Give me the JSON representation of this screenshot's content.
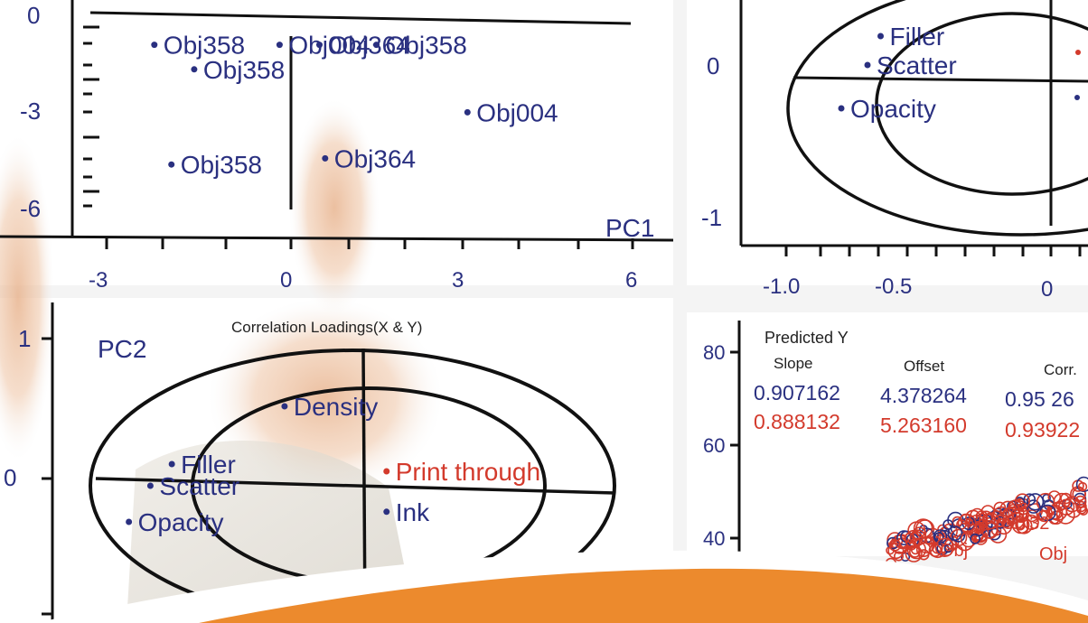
{
  "colors": {
    "navy": "#2a3080",
    "red": "#d33a2c",
    "axis": "#111111",
    "orange": "#ec8a2d",
    "panel": "#ffffff",
    "divider": "#e6e6e6"
  },
  "chart_data": [
    {
      "type": "scatter",
      "panel": "top-left",
      "title": "",
      "xlabel": "PC1",
      "ylabel": "",
      "xticks": [
        "-3",
        "0",
        "3",
        "6"
      ],
      "yticks": [
        "0",
        "-3",
        "-6"
      ],
      "points": [
        {
          "x": -2.4,
          "y": -0.4,
          "label": "Obj358"
        },
        {
          "x": -1.7,
          "y": -1.2,
          "label": "Obj358"
        },
        {
          "x": -2.1,
          "y": -4.3,
          "label": "Obj358"
        },
        {
          "x": -0.2,
          "y": -0.4,
          "label": "Obj004"
        },
        {
          "x": 0.5,
          "y": -0.4,
          "label": "Obj364"
        },
        {
          "x": 1.5,
          "y": -0.4,
          "label": "Obj358"
        },
        {
          "x": 3.1,
          "y": -2.6,
          "label": "Obj004"
        },
        {
          "x": 0.6,
          "y": -4.1,
          "label": "Obj364"
        }
      ]
    },
    {
      "type": "scatter",
      "panel": "top-right",
      "title": "",
      "xticks": [
        "-1.0",
        "-0.5",
        "0"
      ],
      "yticks": [
        "0",
        "-1"
      ],
      "points": [
        {
          "x": -0.65,
          "y": 0.25,
          "label": "Filler"
        },
        {
          "x": -0.7,
          "y": 0.05,
          "label": "Scatter"
        },
        {
          "x": -0.8,
          "y": -0.25,
          "label": "Opacity"
        }
      ]
    },
    {
      "type": "scatter",
      "panel": "bottom-left",
      "title": "Correlation Loadings(X & Y)",
      "ylabel": "PC2",
      "yticks": [
        "1",
        "0"
      ],
      "points": [
        {
          "x": -0.3,
          "y": 0.55,
          "label": "Density",
          "color": "navy"
        },
        {
          "x": -0.72,
          "y": 0.15,
          "label": "Filler",
          "color": "navy"
        },
        {
          "x": -0.8,
          "y": 0.0,
          "label": "Scatter",
          "color": "navy"
        },
        {
          "x": -0.88,
          "y": -0.25,
          "label": "Opacity",
          "color": "navy"
        },
        {
          "x": 0.08,
          "y": 0.1,
          "label": "Print through",
          "color": "red"
        },
        {
          "x": 0.08,
          "y": -0.18,
          "label": "Ink",
          "color": "navy"
        }
      ]
    },
    {
      "type": "scatter",
      "panel": "bottom-right",
      "title": "Predicted Y",
      "yticks": [
        "80",
        "60",
        "40"
      ],
      "table": {
        "headers": [
          "Slope",
          "Offset",
          "Corr."
        ],
        "rows": [
          {
            "slope": "0.907162",
            "offset": "4.378264",
            "corr": "0.95 26",
            "color": "navy"
          },
          {
            "slope": "0.888132",
            "offset": "5.263160",
            "corr": "0.93922",
            "color": "red"
          }
        ]
      },
      "overlap_labels": [
        "Obj32",
        "Obj",
        "Obj"
      ]
    }
  ]
}
